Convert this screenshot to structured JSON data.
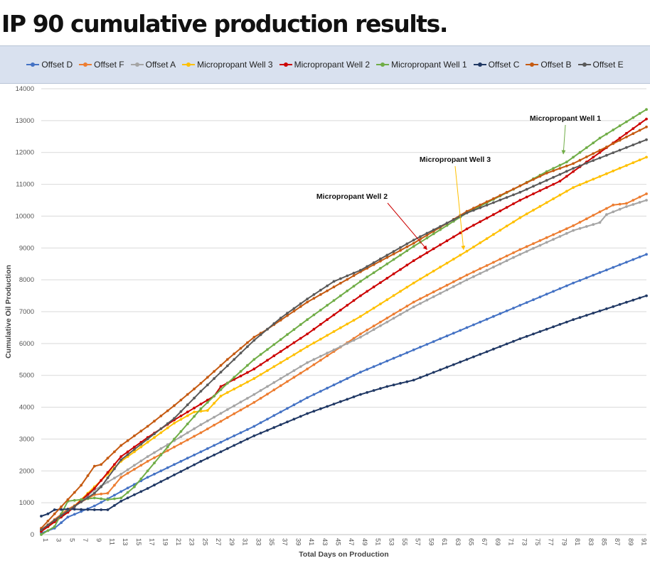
{
  "page": {
    "title": "IP 90 cumulative production results."
  },
  "chart_data": {
    "type": "line",
    "xlabel": "Total Days on Production",
    "ylabel": "Cumulative Oil Production",
    "xlim": [
      1,
      92
    ],
    "ylim": [
      0,
      14000
    ],
    "yticks": [
      0,
      1000,
      2000,
      3000,
      4000,
      5000,
      6000,
      7000,
      8000,
      9000,
      10000,
      11000,
      12000,
      13000,
      14000
    ],
    "xticks": [
      1,
      3,
      5,
      7,
      9,
      11,
      13,
      15,
      17,
      19,
      21,
      23,
      25,
      27,
      29,
      31,
      33,
      35,
      37,
      39,
      41,
      43,
      45,
      47,
      49,
      51,
      53,
      55,
      57,
      59,
      61,
      63,
      65,
      67,
      69,
      71,
      73,
      75,
      77,
      79,
      81,
      83,
      85,
      87,
      89,
      91
    ],
    "grid": "horizontal",
    "legend_position": "top",
    "series": [
      {
        "name": "Offset D",
        "color": "#4472c4",
        "points": [
          [
            1,
            50
          ],
          [
            3,
            200
          ],
          [
            5,
            550
          ],
          [
            9,
            900
          ],
          [
            13,
            1350
          ],
          [
            17,
            1800
          ],
          [
            25,
            2600
          ],
          [
            33,
            3400
          ],
          [
            41,
            4300
          ],
          [
            49,
            5100
          ],
          [
            57,
            5800
          ],
          [
            65,
            6500
          ],
          [
            73,
            7200
          ],
          [
            81,
            7900
          ],
          [
            92,
            8800
          ]
        ]
      },
      {
        "name": "Offset F",
        "color": "#ed7d31",
        "points": [
          [
            1,
            150
          ],
          [
            5,
            800
          ],
          [
            9,
            1250
          ],
          [
            11,
            1300
          ],
          [
            13,
            1800
          ],
          [
            17,
            2300
          ],
          [
            25,
            3200
          ],
          [
            33,
            4150
          ],
          [
            41,
            5200
          ],
          [
            49,
            6300
          ],
          [
            57,
            7300
          ],
          [
            65,
            8150
          ],
          [
            73,
            8950
          ],
          [
            81,
            9700
          ],
          [
            87,
            10350
          ],
          [
            89,
            10400
          ],
          [
            92,
            10700
          ]
        ]
      },
      {
        "name": "Offset A",
        "color": "#a5a5a5",
        "points": [
          [
            1,
            100
          ],
          [
            5,
            700
          ],
          [
            9,
            1400
          ],
          [
            13,
            1900
          ],
          [
            17,
            2450
          ],
          [
            25,
            3450
          ],
          [
            33,
            4400
          ],
          [
            41,
            5400
          ],
          [
            49,
            6200
          ],
          [
            57,
            7150
          ],
          [
            65,
            8000
          ],
          [
            73,
            8800
          ],
          [
            81,
            9550
          ],
          [
            85,
            9800
          ],
          [
            86,
            10050
          ],
          [
            89,
            10300
          ],
          [
            92,
            10500
          ]
        ]
      },
      {
        "name": "Micropropant Well 3",
        "color": "#ffc000",
        "points": [
          [
            1,
            100
          ],
          [
            5,
            700
          ],
          [
            9,
            1500
          ],
          [
            13,
            2300
          ],
          [
            17,
            2900
          ],
          [
            21,
            3500
          ],
          [
            24,
            3850
          ],
          [
            26,
            3900
          ],
          [
            28,
            4350
          ],
          [
            33,
            4900
          ],
          [
            41,
            5900
          ],
          [
            49,
            6850
          ],
          [
            57,
            7900
          ],
          [
            65,
            8900
          ],
          [
            73,
            9950
          ],
          [
            81,
            10900
          ],
          [
            92,
            11850
          ]
        ]
      },
      {
        "name": "Micropropant Well 2",
        "color": "#cc0000",
        "points": [
          [
            1,
            100
          ],
          [
            5,
            700
          ],
          [
            9,
            1450
          ],
          [
            13,
            2450
          ],
          [
            17,
            3050
          ],
          [
            21,
            3600
          ],
          [
            25,
            4100
          ],
          [
            27,
            4350
          ],
          [
            28,
            4650
          ],
          [
            33,
            5200
          ],
          [
            41,
            6300
          ],
          [
            49,
            7500
          ],
          [
            57,
            8600
          ],
          [
            65,
            9600
          ],
          [
            73,
            10500
          ],
          [
            79,
            11100
          ],
          [
            85,
            12000
          ],
          [
            92,
            13050
          ]
        ]
      },
      {
        "name": "Micropropant Well 1",
        "color": "#70ad47",
        "points": [
          [
            1,
            0
          ],
          [
            3,
            250
          ],
          [
            5,
            1050
          ],
          [
            9,
            1150
          ],
          [
            11,
            1100
          ],
          [
            13,
            1150
          ],
          [
            15,
            1500
          ],
          [
            17,
            2000
          ],
          [
            21,
            3000
          ],
          [
            25,
            3950
          ],
          [
            29,
            4750
          ],
          [
            33,
            5500
          ],
          [
            41,
            6750
          ],
          [
            49,
            7950
          ],
          [
            57,
            9050
          ],
          [
            65,
            10100
          ],
          [
            73,
            10950
          ],
          [
            77,
            11400
          ],
          [
            80,
            11700
          ],
          [
            85,
            12450
          ],
          [
            92,
            13350
          ]
        ]
      },
      {
        "name": "Offset C",
        "color": "#203864",
        "points": [
          [
            1,
            580
          ],
          [
            2,
            650
          ],
          [
            3,
            780
          ],
          [
            5,
            800
          ],
          [
            9,
            780
          ],
          [
            11,
            780
          ],
          [
            13,
            1050
          ],
          [
            17,
            1450
          ],
          [
            25,
            2300
          ],
          [
            33,
            3100
          ],
          [
            41,
            3800
          ],
          [
            49,
            4400
          ],
          [
            53,
            4650
          ],
          [
            57,
            4850
          ],
          [
            65,
            5500
          ],
          [
            73,
            6150
          ],
          [
            81,
            6750
          ],
          [
            92,
            7500
          ]
        ]
      },
      {
        "name": "Offset B",
        "color": "#c55a11",
        "points": [
          [
            1,
            200
          ],
          [
            5,
            1100
          ],
          [
            7,
            1550
          ],
          [
            9,
            2150
          ],
          [
            10,
            2200
          ],
          [
            13,
            2800
          ],
          [
            17,
            3400
          ],
          [
            21,
            4050
          ],
          [
            25,
            4750
          ],
          [
            29,
            5500
          ],
          [
            33,
            6200
          ],
          [
            35,
            6450
          ],
          [
            41,
            7300
          ],
          [
            49,
            8250
          ],
          [
            57,
            9150
          ],
          [
            65,
            10150
          ],
          [
            73,
            10950
          ],
          [
            77,
            11350
          ],
          [
            81,
            11650
          ],
          [
            92,
            12800
          ]
        ]
      },
      {
        "name": "Offset E",
        "color": "#595959",
        "points": [
          [
            1,
            150
          ],
          [
            5,
            750
          ],
          [
            9,
            1300
          ],
          [
            10,
            1500
          ],
          [
            13,
            2350
          ],
          [
            17,
            3000
          ],
          [
            21,
            3650
          ],
          [
            25,
            4500
          ],
          [
            29,
            5300
          ],
          [
            33,
            6100
          ],
          [
            37,
            6800
          ],
          [
            41,
            7400
          ],
          [
            45,
            7950
          ],
          [
            49,
            8300
          ],
          [
            57,
            9250
          ],
          [
            65,
            10100
          ],
          [
            73,
            10750
          ],
          [
            81,
            11500
          ],
          [
            92,
            12400
          ]
        ]
      }
    ],
    "annotations": [
      {
        "text": "Micropropant Well 1",
        "arrow_to": [
          79.5,
          11950
        ]
      },
      {
        "text": "Micropropant Well 3",
        "arrow_to": [
          64.5,
          8950
        ]
      },
      {
        "text": "Micropropant Well 2",
        "arrow_to": [
          59,
          8950
        ]
      }
    ]
  }
}
